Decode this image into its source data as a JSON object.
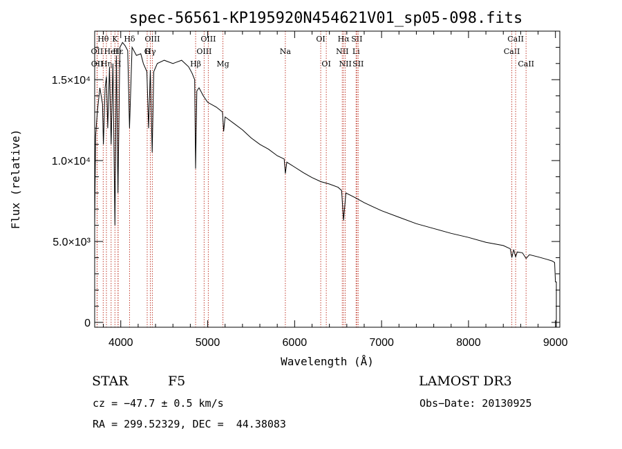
{
  "chart_data": {
    "type": "line",
    "title": "spec-56561-KP195920N454621V01_sp05-098.fits",
    "xlabel": "Wavelength (Å)",
    "ylabel": "Flux (relative)",
    "xlim": [
      3700,
      9050
    ],
    "ylim": [
      -300,
      18000
    ],
    "grid": false,
    "x_ticks": [
      {
        "value": 4000,
        "label": "4000"
      },
      {
        "value": 5000,
        "label": "5000"
      },
      {
        "value": 6000,
        "label": "6000"
      },
      {
        "value": 7000,
        "label": "7000"
      },
      {
        "value": 8000,
        "label": "8000"
      },
      {
        "value": 9000,
        "label": "9000"
      }
    ],
    "y_ticks": [
      {
        "value": 0,
        "label": "0"
      },
      {
        "value": 5000,
        "label": "5.0×10³"
      },
      {
        "value": 10000,
        "label": "1.0×10⁴"
      },
      {
        "value": 15000,
        "label": "1.5×10⁴"
      }
    ],
    "series": [
      {
        "name": "spectrum",
        "color": "#000000",
        "x": [
          3700,
          3710,
          3730,
          3760,
          3790,
          3800,
          3820,
          3835,
          3850,
          3870,
          3889,
          3910,
          3933,
          3950,
          3968,
          3990,
          4020,
          4050,
          4080,
          4101,
          4130,
          4180,
          4230,
          4260,
          4300,
          4320,
          4340,
          4361,
          4380,
          4420,
          4500,
          4600,
          4700,
          4780,
          4820,
          4850,
          4861,
          4875,
          4900,
          4950,
          5000,
          5100,
          5170,
          5183,
          5200,
          5300,
          5400,
          5500,
          5600,
          5700,
          5800,
          5880,
          5893,
          5910,
          6000,
          6100,
          6200,
          6300,
          6400,
          6500,
          6540,
          6563,
          6590,
          6700,
          6800,
          6900,
          7000,
          7200,
          7400,
          7600,
          7800,
          8000,
          8200,
          8400,
          8480,
          8498,
          8520,
          8542,
          8560,
          8620,
          8662,
          8700,
          8800,
          8900,
          8960,
          8990,
          9000,
          9010
        ],
        "values": [
          6000,
          11500,
          13000,
          14500,
          13500,
          11000,
          14500,
          15200,
          12000,
          15800,
          11000,
          16000,
          6000,
          16500,
          8000,
          17000,
          17300,
          17100,
          16800,
          12000,
          17000,
          16500,
          16600,
          16000,
          15500,
          12000,
          15600,
          10500,
          15500,
          16000,
          16200,
          16000,
          16200,
          15800,
          15400,
          15000,
          9500,
          14300,
          14500,
          14000,
          13600,
          13300,
          13000,
          11800,
          12700,
          12300,
          11900,
          11400,
          11000,
          10700,
          10300,
          10100,
          9200,
          9900,
          9600,
          9250,
          8950,
          8700,
          8550,
          8350,
          8150,
          6300,
          8000,
          7700,
          7400,
          7150,
          6900,
          6500,
          6100,
          5800,
          5500,
          5250,
          4950,
          4750,
          4550,
          4000,
          4500,
          4050,
          4350,
          4300,
          3950,
          4180,
          4050,
          3900,
          3800,
          3700,
          2500,
          2500
        ]
      }
    ],
    "line_markers": [
      {
        "x": 3727,
        "label": "OII",
        "row": 2
      },
      {
        "x": 3729,
        "label": "OII",
        "row": 3
      },
      {
        "x": 3798,
        "label": "Hθ",
        "row": 1
      },
      {
        "x": 3835,
        "label": "Hη",
        "row": 3
      },
      {
        "x": 3889,
        "label": "HeI",
        "row": 2
      },
      {
        "x": 3933,
        "label": "K",
        "row": 1
      },
      {
        "x": 3968,
        "label": "H",
        "row": 3
      },
      {
        "x": 3970,
        "label": "Hε",
        "row": 2
      },
      {
        "x": 4101,
        "label": "Hδ",
        "row": 1
      },
      {
        "x": 4304,
        "label": "G",
        "row": 2
      },
      {
        "x": 4340,
        "label": "Hγ",
        "row": 2
      },
      {
        "x": 4363,
        "label": "OIII",
        "row": 1
      },
      {
        "x": 4861,
        "label": "Hβ",
        "row": 3
      },
      {
        "x": 4959,
        "label": "OIII",
        "row": 2
      },
      {
        "x": 5007,
        "label": "OIII",
        "row": 1
      },
      {
        "x": 5175,
        "label": "Mg",
        "row": 3
      },
      {
        "x": 5893,
        "label": "Na",
        "row": 2
      },
      {
        "x": 6300,
        "label": "OI",
        "row": 1
      },
      {
        "x": 6364,
        "label": "OI",
        "row": 3
      },
      {
        "x": 6548,
        "label": "NII",
        "row": 2
      },
      {
        "x": 6563,
        "label": "Hα",
        "row": 1
      },
      {
        "x": 6583,
        "label": "NII",
        "row": 3
      },
      {
        "x": 6707,
        "label": "Li",
        "row": 2
      },
      {
        "x": 6716,
        "label": "SII",
        "row": 1
      },
      {
        "x": 6731,
        "label": "SII",
        "row": 3
      },
      {
        "x": 8498,
        "label": "CaII",
        "row": 2
      },
      {
        "x": 8542,
        "label": "CaII",
        "row": 1
      },
      {
        "x": 8662,
        "label": "CaII",
        "row": 3
      }
    ],
    "marker_color": "#c0392b"
  },
  "info": {
    "object_class": "STAR",
    "subclass": "F5",
    "survey": "LAMOST DR3",
    "cz": "cz = −47.7 ± 0.5 km/s",
    "obs_date": "Obs−Date: 20130925",
    "coords": "RA = 299.52329, DEC =  44.38083"
  }
}
